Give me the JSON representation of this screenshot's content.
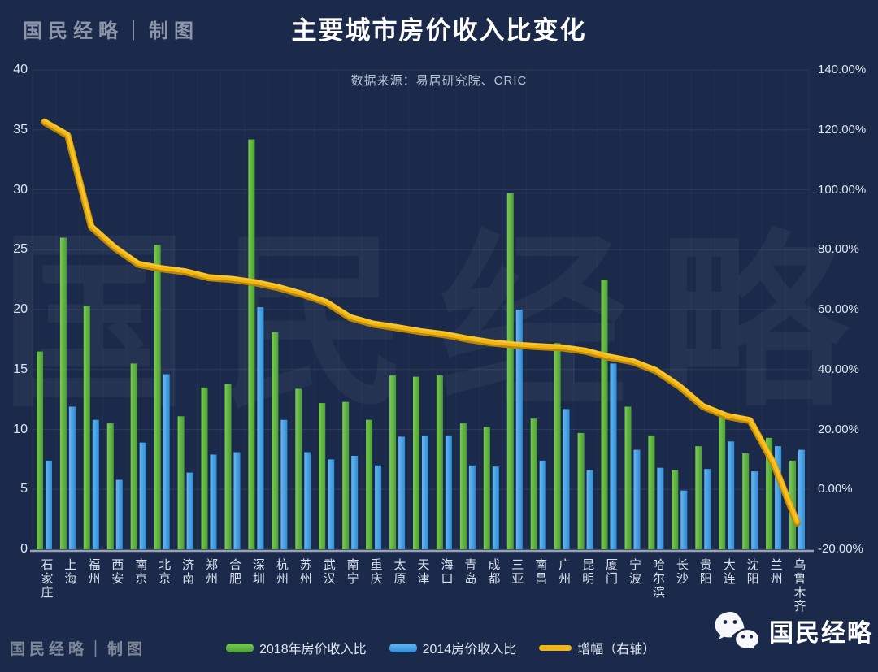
{
  "page": {
    "background": "#1b2a4a",
    "logo_top_left": "国民经略｜制图",
    "logo_bottom_left": "国民经略｜制图",
    "watermark": "国民经略",
    "wechat_label": "国民经略"
  },
  "header": {
    "title": "主要城市房价收入比变化",
    "subtitle": "数据来源：易居研究院、CRIC"
  },
  "axes": {
    "left_ticks": [
      "40",
      "35",
      "30",
      "25",
      "20",
      "15",
      "10",
      "5",
      "0"
    ],
    "right_ticks": [
      "140.00%",
      "120.00%",
      "100.00%",
      "80.00%",
      "60.00%",
      "40.00%",
      "20.00%",
      "0.00%",
      "-20.00%"
    ]
  },
  "legend": [
    {
      "label": "2018年房价收入比",
      "color": "#5cb33e",
      "type": "bar"
    },
    {
      "label": "2014房价收入比",
      "color": "#3d9be0",
      "type": "bar"
    },
    {
      "label": "增幅（右轴）",
      "color": "#f0b513",
      "type": "line"
    }
  ],
  "icons": {
    "wechat": "wechat-icon"
  },
  "colors": {
    "bar_2018": "#5cb33e",
    "bar_2014": "#3d9be0",
    "growth_line": "#f0b513",
    "grid": "rgba(255,255,255,0.08)"
  },
  "chart_data": {
    "type": "bar",
    "subtype": "grouped bars with overlay line on secondary axis",
    "title": "主要城市房价收入比变化",
    "subtitle": "数据来源：易居研究院、CRIC",
    "categories": [
      "石家庄",
      "上海",
      "福州",
      "西安",
      "南京",
      "北京",
      "济南",
      "郑州",
      "合肥",
      "深圳",
      "杭州",
      "苏州",
      "武汉",
      "南宁",
      "重庆",
      "太原",
      "天津",
      "海口",
      "青岛",
      "成都",
      "三亚",
      "南昌",
      "广州",
      "昆明",
      "厦门",
      "宁波",
      "哈尔滨",
      "长沙",
      "贵阳",
      "大连",
      "沈阳",
      "兰州",
      "乌鲁木齐"
    ],
    "series": [
      {
        "name": "2018年房价收入比",
        "type": "bar",
        "axis": "left",
        "color": "#5cb33e",
        "values": [
          16.5,
          26.0,
          20.3,
          10.5,
          15.5,
          25.4,
          11.1,
          13.5,
          13.8,
          34.2,
          18.1,
          13.4,
          12.2,
          12.3,
          10.8,
          14.5,
          14.4,
          14.5,
          10.5,
          10.2,
          29.7,
          10.9,
          17.2,
          9.7,
          22.5,
          11.9,
          9.5,
          6.6,
          8.6,
          11.2,
          8.0,
          9.3,
          7.4
        ]
      },
      {
        "name": "2014房价收入比",
        "type": "bar",
        "axis": "left",
        "color": "#3d9be0",
        "values": [
          7.4,
          11.9,
          10.8,
          5.8,
          8.9,
          14.6,
          6.4,
          7.9,
          8.1,
          20.2,
          10.8,
          8.1,
          7.5,
          7.8,
          7.0,
          9.4,
          9.5,
          9.5,
          7.0,
          6.9,
          20.0,
          7.4,
          11.7,
          6.6,
          15.5,
          8.3,
          6.8,
          4.9,
          6.7,
          9.0,
          6.5,
          8.6,
          8.3
        ]
      },
      {
        "name": "增幅（右轴）",
        "type": "line",
        "axis": "right",
        "unit": "%",
        "color": "#f0b513",
        "values": [
          123.0,
          118.5,
          88.0,
          81.0,
          75.5,
          74.0,
          73.0,
          71.0,
          70.4,
          69.3,
          67.6,
          65.4,
          62.7,
          57.7,
          55.5,
          54.3,
          53.0,
          52.0,
          50.5,
          49.3,
          48.5,
          48.0,
          47.6,
          46.5,
          44.5,
          43.0,
          40.0,
          34.7,
          28.0,
          24.8,
          23.3,
          9.0,
          -10.8
        ]
      }
    ],
    "left_axis": {
      "min": 0,
      "max": 40,
      "step": 5,
      "gridlines": true
    },
    "right_axis": {
      "min": -20,
      "max": 140,
      "step": 20,
      "format": "percent"
    },
    "legend_position": "bottom"
  }
}
